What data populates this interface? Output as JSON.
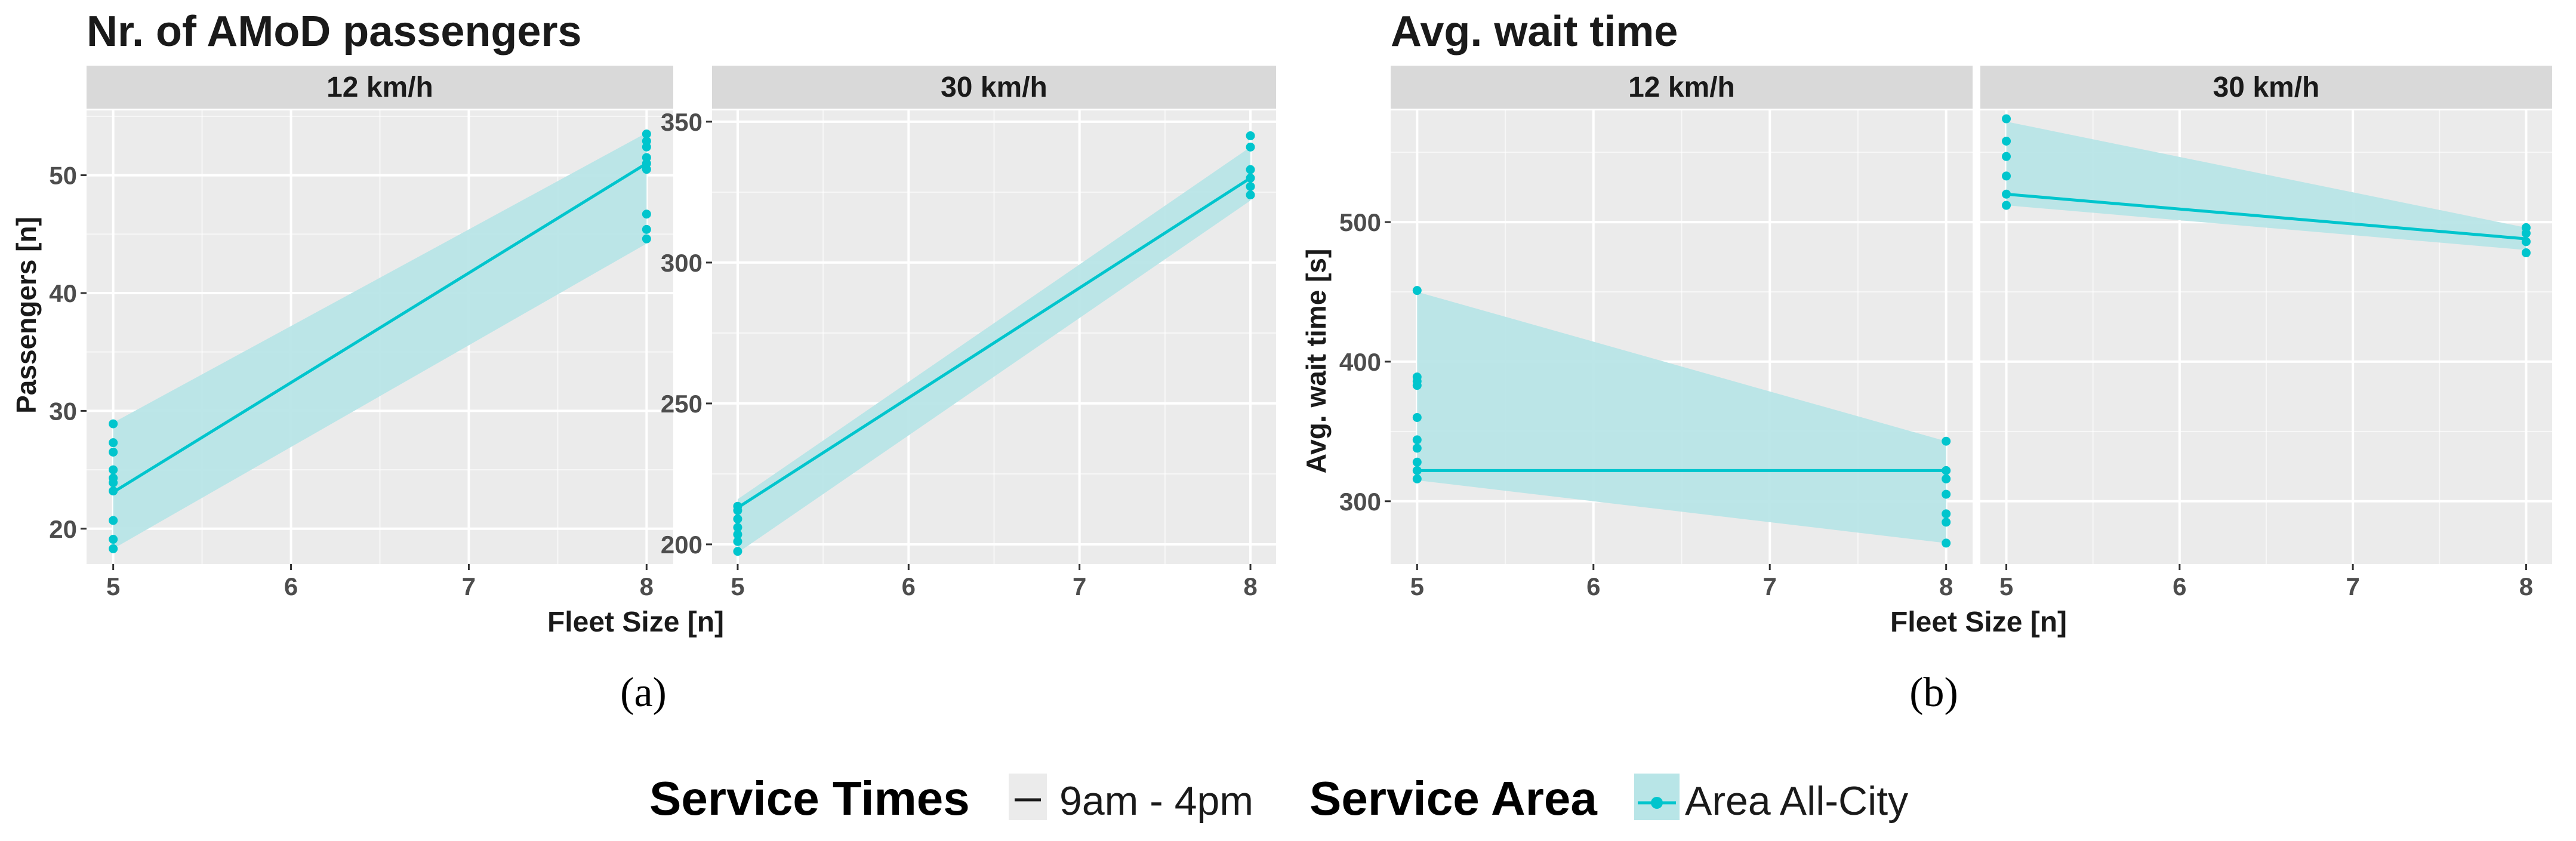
{
  "figure_a": {
    "title": "Nr. of AMoD passengers",
    "caption": "(a)",
    "xlabel": "Fleet Size [n]"
  },
  "figure_b": {
    "title": "Avg. wait time",
    "caption": "(b)"
  },
  "legend": {
    "service_times_title": "Service Times",
    "service_times_item": "9am - 4pm",
    "service_area_title": "Service Area",
    "service_area_item": "Area All-City"
  },
  "colors": {
    "series": "#00c5cd",
    "ribbon": "#b8e5e7",
    "panel_bg": "#ebebeb",
    "strip_bg": "#d9d9d9",
    "grid": "#ffffff",
    "text": "#1a1a1a",
    "tick_text": "#4d4d4d"
  },
  "chart_data": [
    {
      "id": "a1",
      "type": "line",
      "facet": "12 km/h",
      "title": "Nr. of AMoD passengers",
      "xlabel": "Fleet Size [n]",
      "ylabel": "Passengers [n]",
      "xlim": [
        4.85,
        8.15
      ],
      "ylim": [
        17,
        55.5
      ],
      "xticks": [
        5,
        6,
        7,
        8
      ],
      "yticks": [
        20,
        30,
        40,
        50
      ],
      "line": [
        {
          "x": 5,
          "y": 23.1
        },
        {
          "x": 8,
          "y": 51.0
        }
      ],
      "ribbon": [
        {
          "x": 5,
          "lo": 18.3,
          "hi": 29.0
        },
        {
          "x": 8,
          "lo": 44.2,
          "hi": 53.6
        }
      ],
      "points": [
        {
          "x": 5,
          "y": 18.3
        },
        {
          "x": 5,
          "y": 19.1
        },
        {
          "x": 5,
          "y": 20.7
        },
        {
          "x": 5,
          "y": 23.2
        },
        {
          "x": 5,
          "y": 23.9
        },
        {
          "x": 5,
          "y": 24.3
        },
        {
          "x": 5,
          "y": 25.0
        },
        {
          "x": 5,
          "y": 26.5
        },
        {
          "x": 5,
          "y": 27.3
        },
        {
          "x": 5,
          "y": 28.9
        },
        {
          "x": 8,
          "y": 44.6
        },
        {
          "x": 8,
          "y": 45.4
        },
        {
          "x": 8,
          "y": 46.7
        },
        {
          "x": 8,
          "y": 50.5
        },
        {
          "x": 8,
          "y": 51.0
        },
        {
          "x": 8,
          "y": 51.5
        },
        {
          "x": 8,
          "y": 52.4
        },
        {
          "x": 8,
          "y": 52.9
        },
        {
          "x": 8,
          "y": 53.5
        }
      ]
    },
    {
      "id": "a2",
      "type": "line",
      "facet": "30 km/h",
      "xlim": [
        4.85,
        8.15
      ],
      "ylim": [
        193,
        354
      ],
      "xticks": [
        5,
        6,
        7,
        8
      ],
      "yticks": [
        200,
        250,
        300,
        350
      ],
      "line": [
        {
          "x": 5,
          "y": 213.0
        },
        {
          "x": 8,
          "y": 330.0
        }
      ],
      "ribbon": [
        {
          "x": 5,
          "lo": 197.0,
          "hi": 216.0
        },
        {
          "x": 8,
          "lo": 322.0,
          "hi": 341.0
        }
      ],
      "points": [
        {
          "x": 5,
          "y": 197.5
        },
        {
          "x": 5,
          "y": 201.0
        },
        {
          "x": 5,
          "y": 203.5
        },
        {
          "x": 5,
          "y": 206.0
        },
        {
          "x": 5,
          "y": 209.0
        },
        {
          "x": 5,
          "y": 212.0
        },
        {
          "x": 5,
          "y": 213.5
        },
        {
          "x": 8,
          "y": 324.0
        },
        {
          "x": 8,
          "y": 327.0
        },
        {
          "x": 8,
          "y": 330.0
        },
        {
          "x": 8,
          "y": 333.0
        },
        {
          "x": 8,
          "y": 341.0
        },
        {
          "x": 8,
          "y": 345.0
        }
      ]
    },
    {
      "id": "b1",
      "type": "line",
      "facet": "12 km/h",
      "title": "Avg. wait time",
      "xlabel": "Fleet Size [n]",
      "ylabel": "Avg. wait time [s]",
      "xlim": [
        4.85,
        8.15
      ],
      "ylim": [
        255,
        580
      ],
      "xticks": [
        5,
        6,
        7,
        8
      ],
      "yticks": [
        300,
        400,
        500
      ],
      "line": [
        {
          "x": 5,
          "y": 322.0
        },
        {
          "x": 8,
          "y": 322.0
        }
      ],
      "ribbon": [
        {
          "x": 5,
          "lo": 315.0,
          "hi": 450.0
        },
        {
          "x": 8,
          "lo": 270.0,
          "hi": 343.0
        }
      ],
      "points": [
        {
          "x": 5,
          "y": 316.0
        },
        {
          "x": 5,
          "y": 322.0
        },
        {
          "x": 5,
          "y": 328.0
        },
        {
          "x": 5,
          "y": 338.0
        },
        {
          "x": 5,
          "y": 344.0
        },
        {
          "x": 5,
          "y": 360.0
        },
        {
          "x": 5,
          "y": 383.0
        },
        {
          "x": 5,
          "y": 386.0
        },
        {
          "x": 5,
          "y": 389.0
        },
        {
          "x": 5,
          "y": 451.0
        },
        {
          "x": 8,
          "y": 270.0
        },
        {
          "x": 8,
          "y": 285.0
        },
        {
          "x": 8,
          "y": 291.0
        },
        {
          "x": 8,
          "y": 305.0
        },
        {
          "x": 8,
          "y": 316.0
        },
        {
          "x": 8,
          "y": 322.0
        },
        {
          "x": 8,
          "y": 343.0
        }
      ]
    },
    {
      "id": "b2",
      "type": "line",
      "facet": "30 km/h",
      "xlim": [
        4.85,
        8.15
      ],
      "ylim": [
        255,
        580
      ],
      "xticks": [
        5,
        6,
        7,
        8
      ],
      "yticks": [
        300,
        400,
        500
      ],
      "line": [
        {
          "x": 5,
          "y": 520.0
        },
        {
          "x": 8,
          "y": 488.0
        }
      ],
      "ribbon": [
        {
          "x": 5,
          "lo": 512.0,
          "hi": 572.0
        },
        {
          "x": 8,
          "lo": 480.0,
          "hi": 496.0
        }
      ],
      "points": [
        {
          "x": 5,
          "y": 512.0
        },
        {
          "x": 5,
          "y": 520.0
        },
        {
          "x": 5,
          "y": 533.0
        },
        {
          "x": 5,
          "y": 547.0
        },
        {
          "x": 5,
          "y": 558.0
        },
        {
          "x": 5,
          "y": 574.0
        },
        {
          "x": 8,
          "y": 478.0
        },
        {
          "x": 8,
          "y": 486.0
        },
        {
          "x": 8,
          "y": 492.0
        },
        {
          "x": 8,
          "y": 496.0
        }
      ]
    }
  ]
}
